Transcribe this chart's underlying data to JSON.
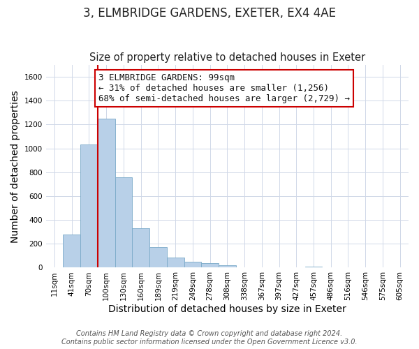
{
  "title": "3, ELMBRIDGE GARDENS, EXETER, EX4 4AE",
  "subtitle": "Size of property relative to detached houses in Exeter",
  "xlabel": "Distribution of detached houses by size in Exeter",
  "ylabel": "Number of detached properties",
  "bar_labels": [
    "11sqm",
    "41sqm",
    "70sqm",
    "100sqm",
    "130sqm",
    "160sqm",
    "189sqm",
    "219sqm",
    "249sqm",
    "278sqm",
    "308sqm",
    "338sqm",
    "367sqm",
    "397sqm",
    "427sqm",
    "457sqm",
    "486sqm",
    "516sqm",
    "546sqm",
    "575sqm",
    "605sqm"
  ],
  "bar_values": [
    0,
    280,
    1035,
    1250,
    760,
    330,
    175,
    85,
    50,
    38,
    20,
    0,
    0,
    0,
    0,
    10,
    0,
    0,
    0,
    0,
    0
  ],
  "bar_color": "#b8d0e8",
  "bar_edge_color": "#7aaac8",
  "vline_x_index": 3,
  "vline_color": "#cc0000",
  "annotation_lines": [
    "3 ELMBRIDGE GARDENS: 99sqm",
    "← 31% of detached houses are smaller (1,256)",
    "68% of semi-detached houses are larger (2,729) →"
  ],
  "annotation_box_color": "#ffffff",
  "annotation_box_edge": "#cc0000",
  "ylim": [
    0,
    1700
  ],
  "yticks": [
    0,
    200,
    400,
    600,
    800,
    1000,
    1200,
    1400,
    1600
  ],
  "footer_lines": [
    "Contains HM Land Registry data © Crown copyright and database right 2024.",
    "Contains public sector information licensed under the Open Government Licence v3.0."
  ],
  "background_color": "#ffffff",
  "grid_color": "#d0d8e8",
  "title_fontsize": 12,
  "subtitle_fontsize": 10.5,
  "axis_label_fontsize": 10,
  "tick_fontsize": 7.5,
  "annotation_fontsize": 9,
  "footer_fontsize": 7
}
